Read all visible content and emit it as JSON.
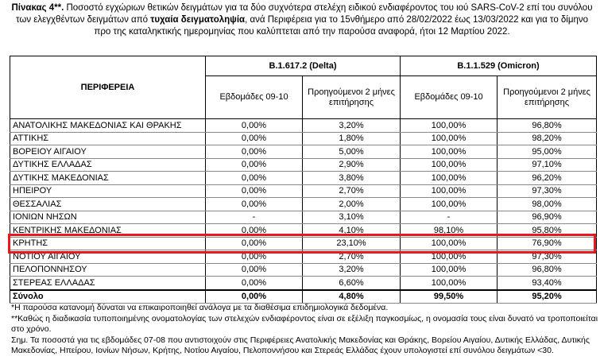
{
  "title": [
    "Πίνακας 4**.",
    " Ποσοστό εγχώριων θετικών δειγμάτων για τα δύο συχνότερα στελέχη ειδικού ενδιαφέροντος του ιού SARS-CoV-2 επί του συνόλου των ελεγχθέντων δειγμάτων από ",
    "τυχαία δειγματοληψία",
    ", ανά Περιφέρεια για το 15νθήμερο από 28/02/2022 έως 13/03/2022 και για το δίμηνο προ της καταληκτικής ημερομηνίας που καλύπτεται από την παρούσα αναφορά, ήτοι 12 Μαρτίου 2022."
  ],
  "table": {
    "region_header": "ΠΕΡΙΦΕΡΕΙΑ",
    "groups": [
      "B.1.617.2 (Delta)",
      "B.1.1.529 (Omicron)"
    ],
    "subheaders": [
      "Εβδομάδες 09-10",
      "Προηγούμενοι 2 μήνες επιτήρησης",
      "Εβδομάδες 09-10",
      "Προηγούμενοι 2 μήνες επιτήρησης"
    ],
    "rows": [
      [
        "ΑΝΑΤΟΛΙΚΗΣ ΜΑΚΕΔΟΝΙΑΣ ΚΑΙ ΘΡΑΚΗΣ",
        "0,00%",
        "3,20%",
        "100,00%",
        "96,80%"
      ],
      [
        "ΑΤΤΙΚΗΣ",
        "0,00%",
        "1,80%",
        "100,00%",
        "98,20%"
      ],
      [
        "ΒΟΡΕΙΟΥ ΑΙΓΑΙΟΥ",
        "0,00%",
        "5,00%",
        "100,00%",
        "95,00%"
      ],
      [
        "ΔΥΤΙΚΗΣ ΕΛΛΑΔΑΣ",
        "0,00%",
        "2,90%",
        "100,00%",
        "97,10%"
      ],
      [
        "ΔΥΤΙΚΗΣ ΜΑΚΕΔΟΝΙΑΣ",
        "0,00%",
        "3,80%",
        "100,00%",
        "96,20%"
      ],
      [
        "ΗΠΕΙΡΟΥ",
        "0,00%",
        "2,70%",
        "100,00%",
        "97,30%"
      ],
      [
        "ΘΕΣΣΑΛΙΑΣ",
        "0,00%",
        "2,00%",
        "100,00%",
        "98,00%"
      ],
      [
        "ΙΟΝΙΩΝ ΝΗΣΩΝ",
        "-",
        "3,10%",
        "-",
        "96,90%"
      ],
      [
        "ΚΕΝΤΡΙΚΗΣ ΜΑΚΕΔΟΝΙΑΣ",
        "0,00%",
        "4,10%",
        "98,10%",
        "95,80%"
      ],
      [
        "ΚΡΗΤΗΣ",
        "0,00%",
        "23,10%",
        "100,00%",
        "76,90%"
      ],
      [
        "ΝΟΤΙΟΥ ΑΙΓΑΙΟΥ",
        "0,00%",
        "2,70%",
        "100,00%",
        "97,30%"
      ],
      [
        "ΠΕΛΟΠΟΝΝΗΣΟΥ",
        "0,00%",
        "3,20%",
        "100,00%",
        "96,80%"
      ],
      [
        "ΣΤΕΡΕΑΣ ΕΛΛΑΔΑΣ",
        "0,00%",
        "6,60%",
        "100,00%",
        "93,40%"
      ]
    ],
    "total": [
      "Σύνολο",
      "0,00%",
      "4,80%",
      "99,50%",
      "95,20%"
    ]
  },
  "footnotes": [
    "*Η παρούσα κατανομή δύναται να επικαιροποιηθεί ανάλογα με τα διαθέσιμα επιδημιολογικά δεδομένα.",
    "**Καθώς η διαδικασία τυποποιημένης ονοματολογίας των στελεχών ενδιαφέροντος είναι σε εξέλιξη παγκοσμίως, η ονομασία τους είναι δυνατό να τροποποιείται στο χρόνο.",
    "Σημ. Τα ποσοστά για τις εβδομάδες 07-08 που αντιστοιχούν στις Περιφέρειες Ανατολικής Μακεδονίας και Θράκης, Βορείου Αιγαίου, Δυτικής Ελλάδας, Δυτικής Μακεδονίας, Ηπείρου, Ιονίων Νήσων, Κρήτης, Νοτίου Αιγαίου, Πελοποννήσου και Στερεάς Ελλάδας έχουν υπολογιστεί επί συνόλου δειγμάτων <30."
  ]
}
